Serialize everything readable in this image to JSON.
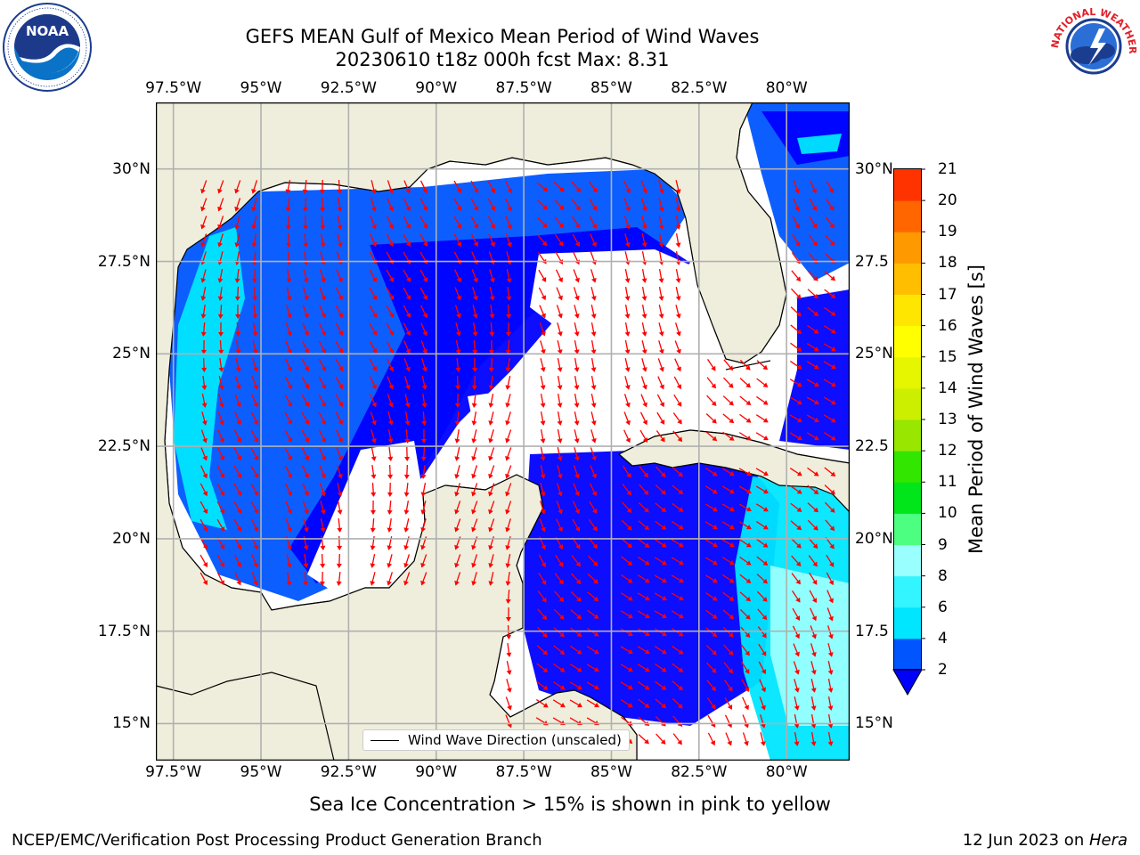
{
  "header": {
    "title_line1": "GEFS MEAN Gulf of Mexico Mean Period of Wind Waves",
    "title_line2": "20230610 t18z 000h fcst   Max: 8.31"
  },
  "logos": {
    "left": {
      "name": "noaa-logo",
      "text": "NOAA"
    },
    "right": {
      "name": "national-weather-service-logo",
      "text": "NATIONAL WEATHER SERVICE"
    }
  },
  "map": {
    "lon_ticks": [
      "97.5°W",
      "95°W",
      "92.5°W",
      "90°W",
      "87.5°W",
      "85°W",
      "82.5°W",
      "80°W"
    ],
    "lat_ticks_left": [
      "30°N",
      "27.5°N",
      "25°N",
      "22.5°N",
      "20°N",
      "17.5°N",
      "15°N"
    ],
    "lat_ticks_right": [
      "30°N",
      "27.5",
      "25°N",
      "22.5",
      "20°N",
      "17.5",
      "15°N"
    ],
    "extent": {
      "lon_min": -98.0,
      "lon_max": -78.2,
      "lat_min": 14.0,
      "lat_max": 31.8
    },
    "legend": "Wind Wave Direction (unscaled)",
    "colors": {
      "land": "#efeedc",
      "ocean_none": "#ffffff",
      "grid": "#b0b0b0",
      "arrow": "#ff0000",
      "coast": "#000000"
    }
  },
  "colorbar": {
    "label": "Mean Period of Wind Waves [s]",
    "ticks": [
      "2",
      "4",
      "6",
      "8",
      "9",
      "10",
      "11",
      "12",
      "13",
      "14",
      "15",
      "16",
      "17",
      "18",
      "19",
      "20",
      "21"
    ],
    "colors": [
      "#0055ff",
      "#00e6ff",
      "#33f5ff",
      "#99ffff",
      "#4dff80",
      "#00e61a",
      "#33e600",
      "#99e600",
      "#ccef00",
      "#e6f500",
      "#ffff00",
      "#ffe600",
      "#ffbf00",
      "#ff9900",
      "#ff6600",
      "#ff3300",
      "#ff0000"
    ],
    "under_color": "#0000ff"
  },
  "notes": {
    "sea_ice": "Sea Ice Concentration > 15% is shown in pink to yellow"
  },
  "footer": {
    "left": "NCEP/EMC/Verification Post Processing Product Generation Branch",
    "right_date": "12 Jun 2023 on ",
    "right_host": "Hera"
  }
}
